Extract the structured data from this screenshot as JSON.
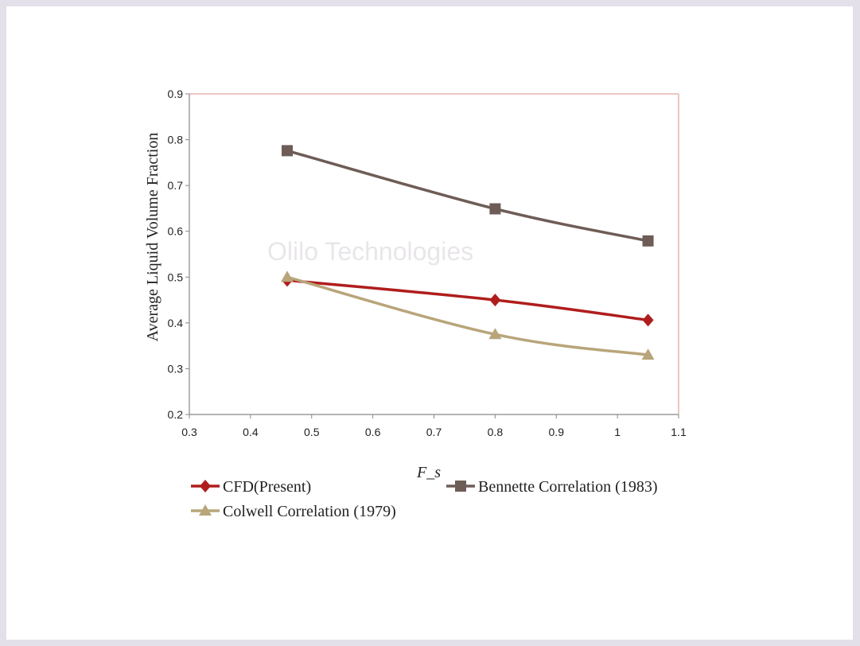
{
  "chart_data": {
    "type": "line",
    "title": "",
    "xlabel": "F_s",
    "ylabel": "Average Liquid Volume Fraction",
    "xlim": [
      0.3,
      1.1
    ],
    "ylim": [
      0.2,
      0.9
    ],
    "x_ticks": [
      "0.3",
      "0.4",
      "0.5",
      "0.6",
      "0.7",
      "0.8",
      "0.9",
      "1",
      "1.1"
    ],
    "y_ticks": [
      "0.2",
      "0.3",
      "0.4",
      "0.5",
      "0.6",
      "0.7",
      "0.8",
      "0.9"
    ],
    "grid": false,
    "legend_position": "bottom",
    "series": [
      {
        "name": "CFD(Present)",
        "x": [
          0.46,
          0.8,
          1.05
        ],
        "values": [
          0.493,
          0.45,
          0.406
        ],
        "color": "#b01d1d",
        "marker": "diamond"
      },
      {
        "name": "Bennette Correlation (1983)",
        "x": [
          0.46,
          0.8,
          1.05
        ],
        "values": [
          0.776,
          0.649,
          0.579
        ],
        "color": "#6e5c56",
        "marker": "square"
      },
      {
        "name": "Colwell Correlation (1979)",
        "x": [
          0.46,
          0.8,
          1.05
        ],
        "values": [
          0.5,
          0.375,
          0.33
        ],
        "color": "#b8a57a",
        "marker": "triangle"
      }
    ]
  },
  "watermark": "Olilo Technologies"
}
